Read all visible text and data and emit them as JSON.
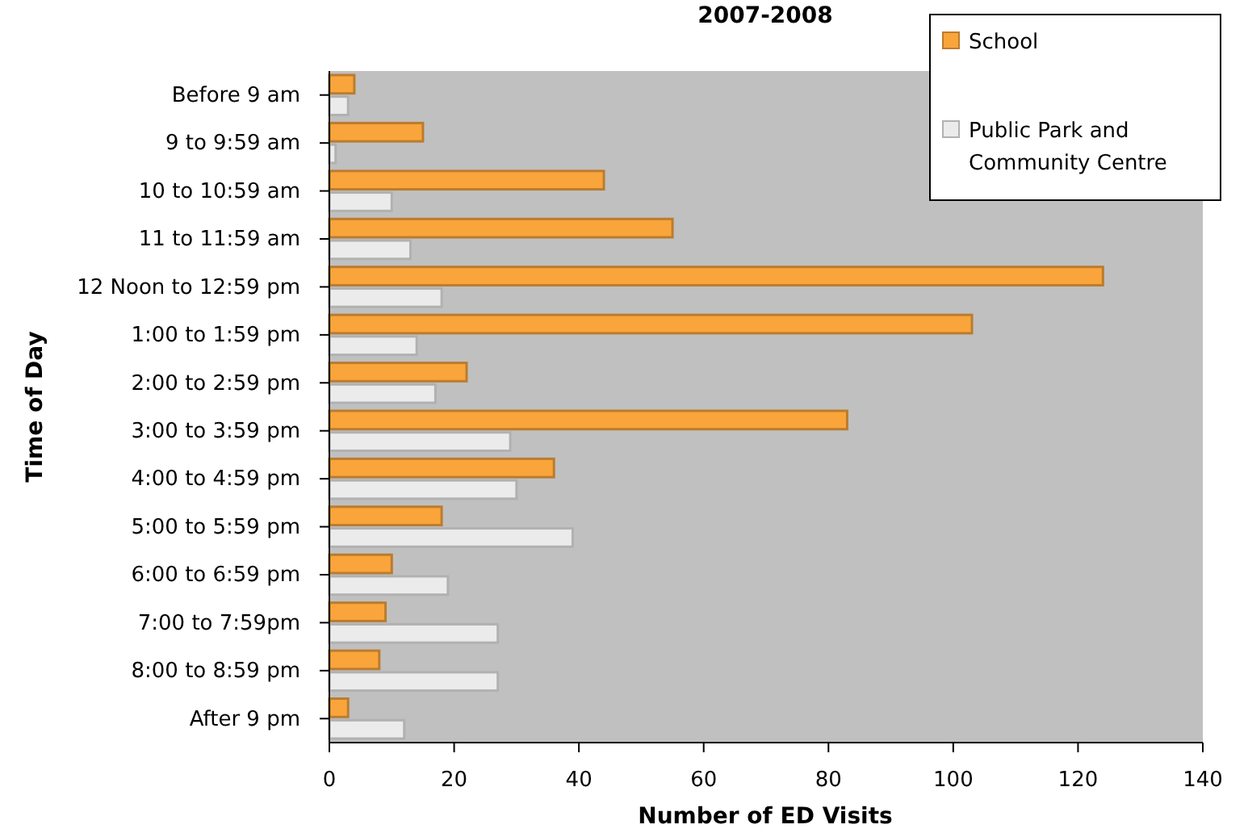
{
  "chart_data": {
    "type": "bar",
    "orientation": "horizontal",
    "title": "2007-2008",
    "xlabel": "Number of ED Visits",
    "ylabel": "Time of Day",
    "categories": [
      "Before 9 am",
      "9 to 9:59  am",
      "10 to 10:59  am",
      "11 to 11:59  am",
      "12 Noon to 12:59 pm",
      "1:00 to 1:59 pm",
      "2:00 to 2:59 pm",
      "3:00 to 3:59 pm",
      "4:00 to 4:59 pm",
      "5:00 to  5:59 pm",
      "6:00 to 6:59 pm",
      "7:00 to 7:59pm",
      "8:00 to 8:59 pm",
      "After 9 pm"
    ],
    "series": [
      {
        "name": "School",
        "color": "#f9a53c",
        "values": [
          4,
          15,
          44,
          55,
          124,
          103,
          22,
          83,
          36,
          18,
          10,
          9,
          8,
          3
        ]
      },
      {
        "name": "Public Park and Community Centre",
        "color": "#ebebeb",
        "values": [
          3,
          1,
          10,
          13,
          18,
          14,
          17,
          29,
          30,
          39,
          19,
          27,
          27,
          12
        ]
      }
    ],
    "xlim": [
      0,
      140
    ],
    "xticks": [
      0,
      20,
      40,
      60,
      80,
      100,
      120,
      140
    ],
    "grid": false,
    "legend": "top right"
  }
}
